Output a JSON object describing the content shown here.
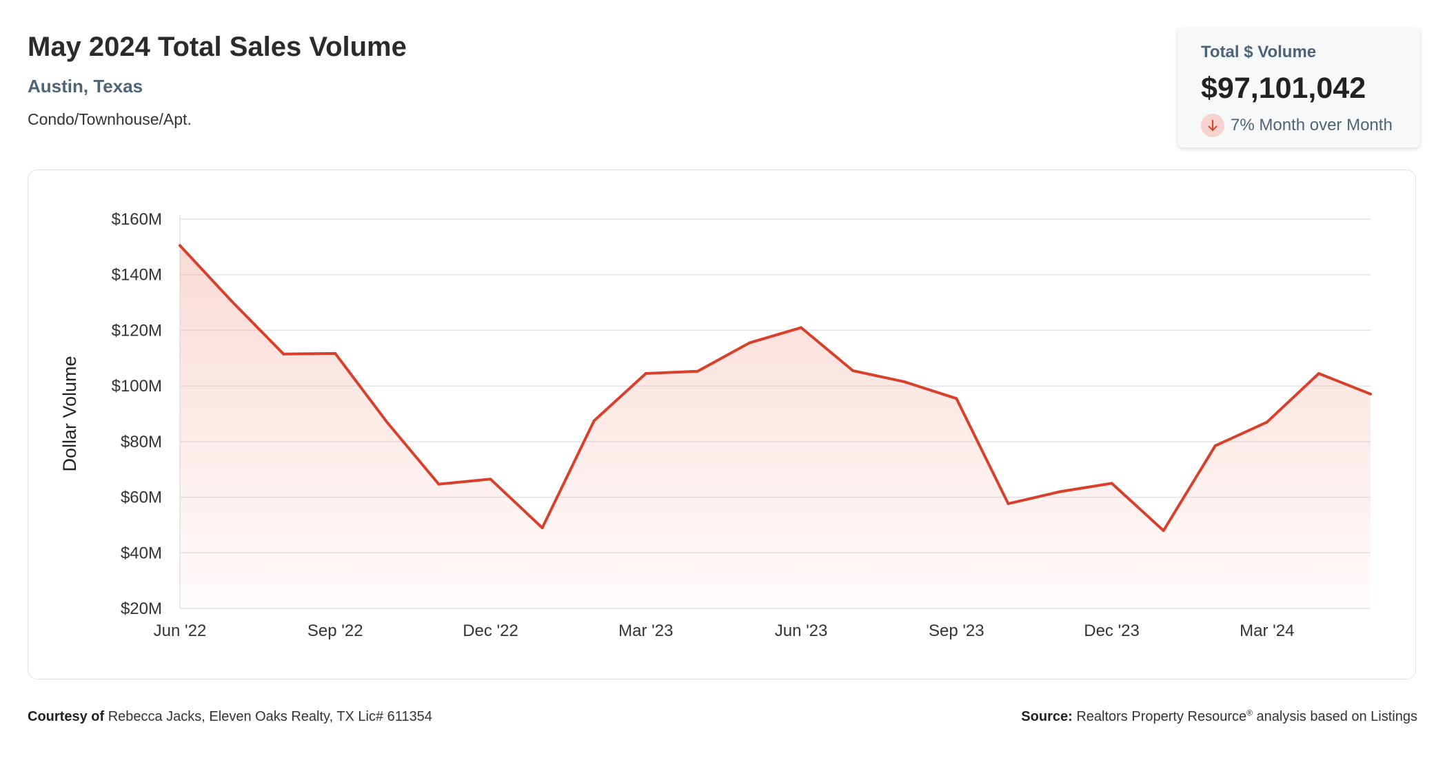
{
  "header": {
    "title": "May 2024 Total Sales Volume",
    "location": "Austin, Texas",
    "property_type": "Condo/Townhouse/Apt."
  },
  "kpi": {
    "label": "Total $ Volume",
    "value": "$97,101,042",
    "change": "7% Month over Month",
    "direction": "down",
    "arrow_icon": "arrow-down-icon"
  },
  "footer": {
    "courtesy_label": "Courtesy of",
    "courtesy_text": "Rebecca Jacks, Eleven Oaks Realty, TX Lic# 611354",
    "source_label": "Source:",
    "source_text_1": "Realtors Property Resource",
    "source_reg": "®",
    "source_text_2": " analysis based on Listings"
  },
  "colors": {
    "line": "#d9402c",
    "fill": "#f4a89c",
    "grid": "#e1e3e7",
    "label": "#4f6378"
  },
  "chart_data": {
    "type": "area",
    "ylabel": "Dollar Volume",
    "x": [
      "2022-06",
      "2022-07",
      "2022-08",
      "2022-09",
      "2022-10",
      "2022-11",
      "2022-12",
      "2023-01",
      "2023-02",
      "2023-03",
      "2023-04",
      "2023-05",
      "2023-06",
      "2023-07",
      "2023-08",
      "2023-09",
      "2023-10",
      "2023-11",
      "2023-12",
      "2024-01",
      "2024-02",
      "2024-03",
      "2024-04",
      "2024-05"
    ],
    "series": [
      {
        "values": [
          150.5,
          130.5,
          111.5,
          111.7,
          87.0,
          64.7,
          66.5,
          49.0,
          87.5,
          104.5,
          105.3,
          115.5,
          121.0,
          105.5,
          101.5,
          95.5,
          57.7,
          62.0,
          65.0,
          48.0,
          78.5,
          87.0,
          104.5,
          97.1
        ]
      }
    ],
    "x_ticks": [
      {
        "index": 0,
        "label": "Jun '22"
      },
      {
        "index": 3,
        "label": "Sep '22"
      },
      {
        "index": 6,
        "label": "Dec '22"
      },
      {
        "index": 9,
        "label": "Mar '23"
      },
      {
        "index": 12,
        "label": "Jun '23"
      },
      {
        "index": 15,
        "label": "Sep '23"
      },
      {
        "index": 18,
        "label": "Dec '23"
      },
      {
        "index": 21,
        "label": "Mar '24"
      }
    ],
    "y_ticks": [
      {
        "value": 20,
        "label": "$20M"
      },
      {
        "value": 40,
        "label": "$40M"
      },
      {
        "value": 60,
        "label": "$60M"
      },
      {
        "value": 80,
        "label": "$80M"
      },
      {
        "value": 100,
        "label": "$100M"
      },
      {
        "value": 120,
        "label": "$120M"
      },
      {
        "value": 140,
        "label": "$140M"
      },
      {
        "value": 160,
        "label": "$160M"
      }
    ],
    "ylim": [
      20,
      160
    ],
    "grid": true,
    "legend": "none"
  }
}
